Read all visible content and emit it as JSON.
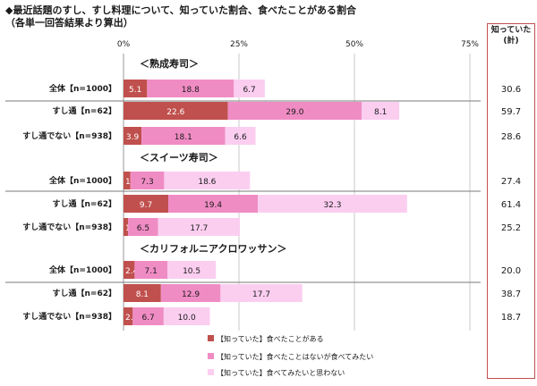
{
  "title": "◆最近話題のすし、すし料理について、知っていた割合、食べたことがある割合",
  "subtitle": "（各単一回答結果より算出）",
  "total_header": [
    "知っていた",
    "(計)"
  ],
  "chart_data": {
    "type": "bar",
    "orientation": "horizontal",
    "stacked": true,
    "xlim": [
      0,
      75
    ],
    "xticks": [
      "0%",
      "25%",
      "50%",
      "75%"
    ],
    "colors": [
      "#c0504d",
      "#f08cc4",
      "#fbcef0"
    ],
    "legend_position": "bottom",
    "series_names": [
      "【知っていた】食べたことがある",
      "【知っていた】食べたことはないが食べてみたい",
      "【知っていた】食べてみたいと思わない"
    ],
    "groups": [
      {
        "label": "＜熟成寿司＞",
        "rows": [
          {
            "label": "全体【n=1000】",
            "values": [
              5.1,
              18.8,
              6.7
            ],
            "total": "30.6"
          },
          {
            "label": "すし通【n=62】",
            "values": [
              22.6,
              29.0,
              8.1
            ],
            "total": "59.7"
          },
          {
            "label": "すし通でない【n=938】",
            "values": [
              3.9,
              18.1,
              6.6
            ],
            "total": "28.6"
          }
        ]
      },
      {
        "label": "＜スイーツ寿司＞",
        "rows": [
          {
            "label": "全体【n=1000】",
            "values": [
              1.5,
              7.3,
              18.6
            ],
            "total": "27.4"
          },
          {
            "label": "すし通【n=62】",
            "values": [
              9.7,
              19.4,
              32.3
            ],
            "total": "61.4"
          },
          {
            "label": "すし通でない【n=938】",
            "values": [
              1.0,
              6.5,
              17.7
            ],
            "total": "25.2"
          }
        ]
      },
      {
        "label": "＜カリフォルニアクロワッサン＞",
        "rows": [
          {
            "label": "全体【n=1000】",
            "values": [
              2.4,
              7.1,
              10.5
            ],
            "total": "20.0"
          },
          {
            "label": "すし通【n=62】",
            "values": [
              8.1,
              12.9,
              17.7
            ],
            "total": "38.7"
          },
          {
            "label": "すし通でない【n=938】",
            "values": [
              2.0,
              6.7,
              10.0
            ],
            "total": "18.7"
          }
        ]
      }
    ]
  }
}
